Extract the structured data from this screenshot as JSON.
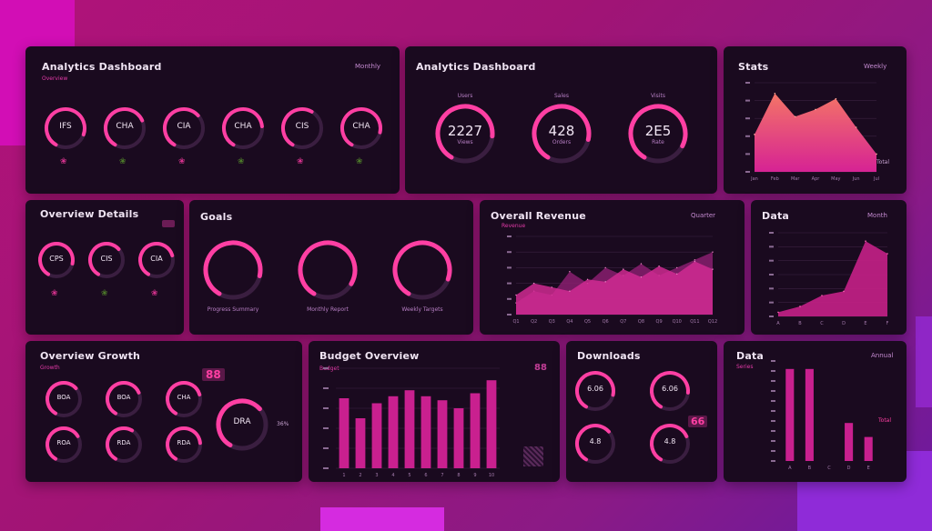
{
  "colors": {
    "accent": "#ff3fa3",
    "accent2": "#e0249a",
    "track": "#3a1e40",
    "panel": "#1a0a1f",
    "leaf_green": "#4d7a2a",
    "leaf_pink": "#d8338f"
  },
  "panel1": {
    "title": "Analytics Dashboard",
    "right": "Monthly",
    "sub": "Overview",
    "rings": [
      {
        "label": "IFS",
        "pct": 0.72
      },
      {
        "label": "CHA",
        "pct": 0.6
      },
      {
        "label": "CIA",
        "pct": 0.55
      },
      {
        "label": "CHA",
        "pct": 0.65
      },
      {
        "label": "CIS",
        "pct": 0.5
      },
      {
        "label": "CHA",
        "pct": 0.7
      }
    ]
  },
  "panel2": {
    "title": "Analytics Dashboard",
    "rings": [
      {
        "top": "Users",
        "value": "2227",
        "sub": "Views",
        "pct": 0.68
      },
      {
        "top": "Sales",
        "value": "428",
        "sub": "Orders",
        "pct": 0.7
      },
      {
        "top": "Visits",
        "value": "2E5",
        "sub": "Rate",
        "pct": 0.74
      }
    ]
  },
  "panel3": {
    "title": "Stats",
    "right": "Weekly",
    "legend": "Total",
    "chart_data": {
      "type": "area",
      "x": [
        "Jan",
        "Feb",
        "Mar",
        "Apr",
        "May",
        "Jun",
        "Jul"
      ],
      "values": [
        42,
        88,
        62,
        70,
        82,
        50,
        20
      ],
      "ylim": [
        0,
        100
      ]
    }
  },
  "panel4": {
    "title": "Overview Details",
    "rings": [
      {
        "label": "CPS",
        "pct": 0.7
      },
      {
        "label": "CIS",
        "pct": 0.55
      },
      {
        "label": "CIA",
        "pct": 0.62
      }
    ]
  },
  "panel5": {
    "title": "Goals",
    "rings": [
      {
        "caption": "Progress Summary",
        "pct": 0.7
      },
      {
        "caption": "Monthly Report",
        "pct": 0.75
      },
      {
        "caption": "Weekly Targets",
        "pct": 0.72
      }
    ]
  },
  "panel6": {
    "title": "Overall Revenue",
    "right": "Quarter",
    "sub": "Revenue",
    "chart_data": {
      "type": "area",
      "x": [
        "Q1",
        "Q2",
        "Q3",
        "Q4",
        "Q5",
        "Q6",
        "Q7",
        "Q8",
        "Q9",
        "Q10",
        "Q11",
        "Q12"
      ],
      "series": [
        {
          "values": [
            15,
            30,
            25,
            55,
            40,
            60,
            50,
            65,
            50,
            60,
            70,
            80
          ]
        },
        {
          "values": [
            25,
            40,
            35,
            30,
            45,
            42,
            58,
            48,
            62,
            52,
            68,
            58
          ]
        }
      ],
      "ylim": [
        0,
        100
      ]
    }
  },
  "panel7": {
    "title": "Data",
    "right": "Month",
    "chart_data": {
      "type": "area",
      "x": [
        "A",
        "B",
        "C",
        "D",
        "E",
        "F"
      ],
      "values": [
        5,
        12,
        25,
        30,
        90,
        75
      ],
      "ylim": [
        0,
        100
      ]
    }
  },
  "panel8": {
    "title": "Overview Growth",
    "sub": "Growth",
    "badge": "88",
    "rings": [
      {
        "label": "BOA",
        "pct": 0.55
      },
      {
        "label": "BOA",
        "pct": 0.6
      },
      {
        "label": "CHA",
        "pct": 0.62
      },
      {
        "label": "ROA",
        "pct": 0.58
      },
      {
        "label": "RDA",
        "pct": 0.5
      },
      {
        "label": "RDA",
        "pct": 0.65
      }
    ],
    "big": {
      "label": "DRA",
      "pct": 0.55
    },
    "big_right": "36%"
  },
  "panel9": {
    "title": "Budget Overview",
    "sub": "Budget",
    "badge": "88",
    "chart_data": {
      "type": "bar",
      "x": [
        "1",
        "2",
        "3",
        "4",
        "5",
        "6",
        "7",
        "8",
        "9",
        "10"
      ],
      "values": [
        70,
        50,
        65,
        72,
        78,
        72,
        68,
        60,
        75,
        88
      ],
      "ylim": [
        0,
        100
      ]
    }
  },
  "panel10": {
    "title": "Downloads",
    "badge": "66",
    "rings": [
      {
        "label": "6.06",
        "pct": 0.7
      },
      {
        "label": "6.06",
        "pct": 0.68
      },
      {
        "label": "4.8",
        "pct": 0.55
      },
      {
        "label": "4.8",
        "pct": 0.6
      }
    ]
  },
  "panel11": {
    "title": "Data",
    "right": "Annual",
    "sub": "Series",
    "legend": "Total",
    "chart_data": {
      "type": "bar",
      "x": [
        "A",
        "B",
        "C",
        "D",
        "E"
      ],
      "values": [
        92,
        92,
        0,
        38,
        24
      ],
      "ylim": [
        0,
        100
      ]
    }
  }
}
